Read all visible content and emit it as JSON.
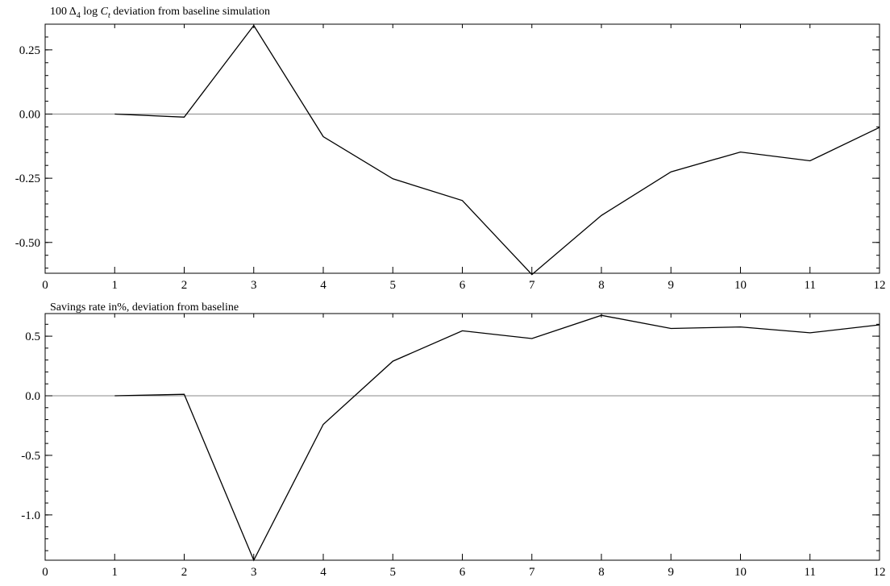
{
  "chart_data": [
    {
      "type": "line",
      "title_parts": {
        "prefix": "100 Δ",
        "sub1": "4",
        "mid": " log ",
        "var": "C",
        "sub2": "t",
        "suffix": " deviation from baseline simulation"
      },
      "x": [
        1,
        2,
        3,
        4,
        5,
        6,
        7,
        8,
        9,
        10,
        11,
        12
      ],
      "series": [
        {
          "values": [
            0.0,
            -0.012,
            0.345,
            -0.088,
            -0.252,
            -0.337,
            -0.625,
            -0.395,
            -0.225,
            -0.148,
            -0.182,
            -0.052
          ]
        }
      ],
      "xlim": [
        0,
        12
      ],
      "ylim": [
        -0.62,
        0.35
      ],
      "xticks": [
        0,
        1,
        2,
        3,
        4,
        5,
        6,
        7,
        8,
        9,
        10,
        11,
        12
      ],
      "xtick_labels": [
        "0",
        "1",
        "2",
        "3",
        "4",
        "5",
        "6",
        "7",
        "8",
        "9",
        "10",
        "11",
        "12"
      ],
      "yticks": [
        0.25,
        0.0,
        -0.25,
        -0.5
      ],
      "ytick_labels": [
        "0.25",
        "0.00",
        "-0.25",
        "-0.50"
      ],
      "reference_line": 0,
      "grid": false
    },
    {
      "type": "line",
      "title": "Savings rate in%, deviation from baseline",
      "x": [
        1,
        2,
        3,
        4,
        5,
        6,
        7,
        8,
        9,
        10,
        11,
        12
      ],
      "series": [
        {
          "values": [
            0.0,
            0.012,
            -1.38,
            -0.24,
            0.29,
            0.545,
            0.48,
            0.675,
            0.565,
            0.578,
            0.528,
            0.595
          ]
        }
      ],
      "xlim": [
        0,
        12
      ],
      "ylim": [
        -1.38,
        0.69
      ],
      "xticks": [
        0,
        1,
        2,
        3,
        4,
        5,
        6,
        7,
        8,
        9,
        10,
        11,
        12
      ],
      "xtick_labels": [
        "0",
        "1",
        "2",
        "3",
        "4",
        "5",
        "6",
        "7",
        "8",
        "9",
        "10",
        "11",
        "12"
      ],
      "yticks": [
        0.5,
        0.0,
        -0.5,
        -1.0
      ],
      "ytick_labels": [
        "0.5",
        "0.0",
        "-0.5",
        "-1.0"
      ],
      "reference_line": 0,
      "grid": false
    }
  ]
}
